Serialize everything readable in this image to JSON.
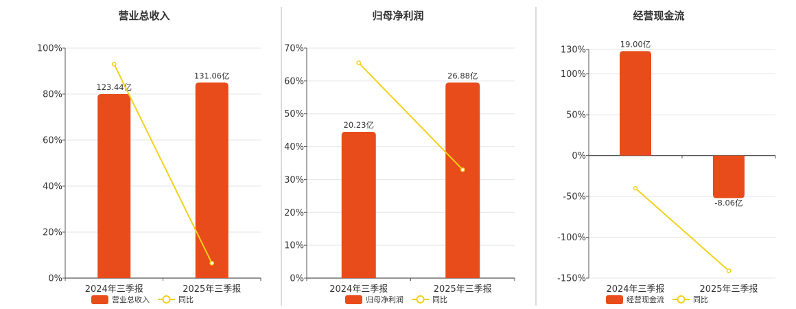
{
  "colors": {
    "bar": "#e84c1a",
    "line": "#f2d11b",
    "grid": "#e6e6e6",
    "axis": "#555555",
    "divider": "#b5b5b5"
  },
  "legend": {
    "line_label": "同比"
  },
  "chart_data": [
    {
      "type": "bar",
      "title": "营业总收入",
      "categories": [
        "2024年三季报",
        "2025年三季报"
      ],
      "yticks": [
        "0%",
        "20%",
        "40%",
        "60%",
        "80%",
        "100%"
      ],
      "ylim": [
        0,
        100
      ],
      "bar_series": {
        "name": "营业总收入",
        "values": [
          80,
          85
        ],
        "labels": [
          "123.44亿",
          "131.06亿"
        ]
      },
      "line_series": {
        "name": "同比",
        "values": [
          93,
          6.5
        ]
      }
    },
    {
      "type": "bar",
      "title": "归母净利润",
      "categories": [
        "2024年三季报",
        "2025年三季报"
      ],
      "yticks": [
        "0%",
        "10%",
        "20%",
        "30%",
        "40%",
        "50%",
        "60%",
        "70%"
      ],
      "ylim": [
        0,
        70
      ],
      "bar_series": {
        "name": "归母净利润",
        "values": [
          44.5,
          59.5
        ],
        "labels": [
          "20.23亿",
          "26.88亿"
        ]
      },
      "line_series": {
        "name": "同比",
        "values": [
          65.5,
          33
        ]
      }
    },
    {
      "type": "bar",
      "title": "经营现金流",
      "categories": [
        "2024年三季报",
        "2025年三季报"
      ],
      "yticks": [
        "-150%",
        "-100%",
        "-50%",
        "0%",
        "50%",
        "100%",
        "130%"
      ],
      "ylim": [
        -150,
        130
      ],
      "bar_series": {
        "name": "经营现金流",
        "values": [
          128,
          -52
        ],
        "labels": [
          "19.00亿",
          "-8.06亿"
        ]
      },
      "line_series": {
        "name": "同比",
        "values": [
          -40,
          -141
        ]
      }
    }
  ]
}
